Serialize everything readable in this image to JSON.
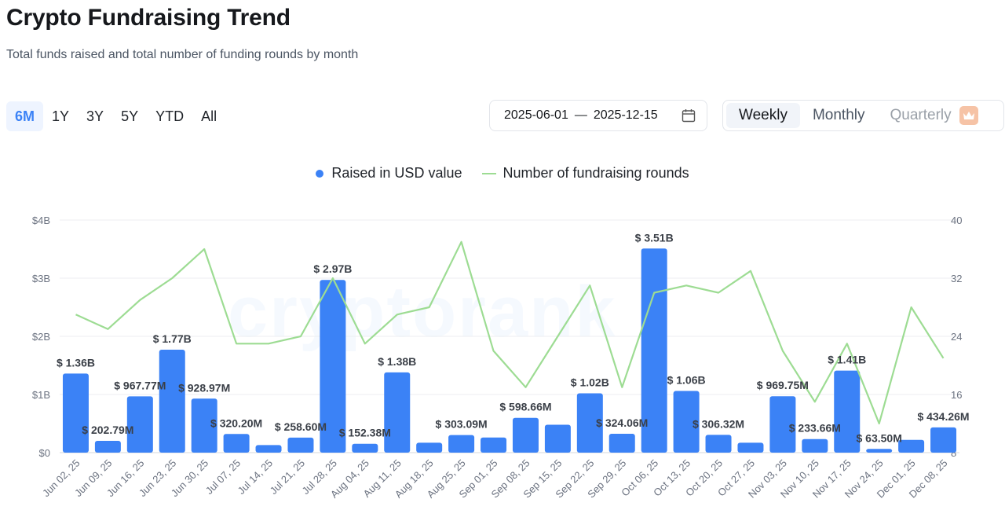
{
  "header": {
    "title": "Crypto Fundraising Trend",
    "subtitle": "Total funds raised and total number of funding rounds by month"
  },
  "range_tabs": [
    {
      "label": "6M",
      "active": true
    },
    {
      "label": "1Y",
      "active": false
    },
    {
      "label": "3Y",
      "active": false
    },
    {
      "label": "5Y",
      "active": false
    },
    {
      "label": "YTD",
      "active": false
    },
    {
      "label": "All",
      "active": false
    }
  ],
  "date_range": {
    "start": "2025-06-01",
    "separator": "—",
    "end": "2025-12-15"
  },
  "periods": [
    {
      "label": "Weekly",
      "active": true
    },
    {
      "label": "Monthly",
      "active": false
    },
    {
      "label": "Quarterly",
      "active": false,
      "locked": true
    }
  ],
  "watermark": "cryptorank",
  "colors": {
    "bar": "#3b82f6",
    "line": "#9ddc93",
    "accent": "#3b82f6"
  },
  "chart_data": {
    "type": "bar",
    "title": "",
    "legend": [
      "Raised in USD value",
      "Number of fundraising rounds"
    ],
    "legend_position": "top-center",
    "categories": [
      "Jun 02, 25",
      "Jun 09, 25",
      "Jun 16, 25",
      "Jun 23, 25",
      "Jun 30, 25",
      "Jul 07, 25",
      "Jul 14, 25",
      "Jul 21, 25",
      "Jul 28, 25",
      "Aug 04, 25",
      "Aug 11, 25",
      "Aug 18, 25",
      "Aug 25, 25",
      "Sep 01, 25",
      "Sep 08, 25",
      "Sep 15, 25",
      "Sep 22, 25",
      "Sep 29, 25",
      "Oct 06, 25",
      "Oct 13, 25",
      "Oct 20, 25",
      "Oct 27, 25",
      "Nov 03, 25",
      "Nov 10, 25",
      "Nov 17, 25",
      "Nov 24, 25",
      "Dec 01, 25",
      "Dec 08, 25"
    ],
    "series": [
      {
        "name": "Raised in USD value",
        "type": "bar",
        "axis": "left",
        "values": [
          1.36,
          0.20279,
          0.96777,
          1.77,
          0.92897,
          0.3202,
          0.13,
          0.2586,
          2.97,
          0.15238,
          1.38,
          0.17,
          0.30309,
          0.26,
          0.59866,
          0.48,
          1.02,
          0.32406,
          3.51,
          1.06,
          0.30632,
          0.17,
          0.96975,
          0.23366,
          1.41,
          0.0635,
          0.22,
          0.43426
        ],
        "labels": [
          "$ 1.36B",
          "$ 202.79M",
          "$ 967.77M",
          "$ 1.77B",
          "$ 928.97M",
          "$ 320.20M",
          "",
          "$ 258.60M",
          "$ 2.97B",
          "$ 152.38M",
          "$ 1.38B",
          "",
          "$ 303.09M",
          "",
          "$ 598.66M",
          "",
          "$ 1.02B",
          "$ 324.06M",
          "$ 3.51B",
          "$ 1.06B",
          "$ 306.32M",
          "",
          "$ 969.75M",
          "$ 233.66M",
          "$ 1.41B",
          "$ 63.50M",
          "",
          "$ 434.26M"
        ]
      },
      {
        "name": "Number of fundraising rounds",
        "type": "line",
        "axis": "right",
        "values": [
          27,
          25,
          29,
          32,
          36,
          23,
          23,
          24,
          32,
          23,
          27,
          28,
          37,
          22,
          17,
          24,
          31,
          17,
          30,
          31,
          30,
          33,
          22,
          15,
          23,
          12,
          28,
          21
        ]
      }
    ],
    "y_left": {
      "min": 0,
      "max": 4,
      "unit": "B",
      "ticks": [
        "$0",
        "$1B",
        "$2B",
        "$3B",
        "$4B"
      ]
    },
    "y_right": {
      "min": 8,
      "max": 40,
      "ticks": [
        "8",
        "16",
        "24",
        "32",
        "40"
      ]
    },
    "grid": true
  }
}
